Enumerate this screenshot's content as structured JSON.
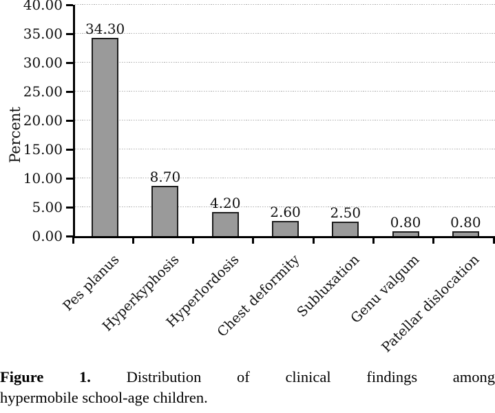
{
  "chart_data": {
    "type": "bar",
    "title": "",
    "xlabel": "",
    "ylabel": "Percent",
    "ylim": [
      0,
      40
    ],
    "ytick_step": 5,
    "ytick_labels": [
      "0.00",
      "5.00",
      "10.00",
      "15.00",
      "20.00",
      "25.00",
      "30.00",
      "35.00",
      "40.00"
    ],
    "grid": "horizontal-dotted",
    "legend": "none",
    "categories": [
      "Pes planus",
      "Hyperkyphosis",
      "Hyperlordosis",
      "Chest deformity",
      "Subluxation",
      "Genu valgum",
      "Patellar dislocation"
    ],
    "values": [
      34.3,
      8.7,
      4.2,
      2.6,
      2.5,
      0.8,
      0.8
    ],
    "value_labels": [
      "34.30",
      "8.70",
      "4.20",
      "2.60",
      "2.50",
      "0.80",
      "0.80"
    ],
    "colors": {
      "bar_fill": "#9a9a9a",
      "bar_border": "#1c1c1c",
      "axis": "#000000",
      "gridline": "#adadad",
      "text": "#101010"
    }
  },
  "caption": {
    "prefix": "Figure 1.",
    "line1": "Distribution of clinical findings among",
    "line2": "hypermobile school-age children."
  }
}
